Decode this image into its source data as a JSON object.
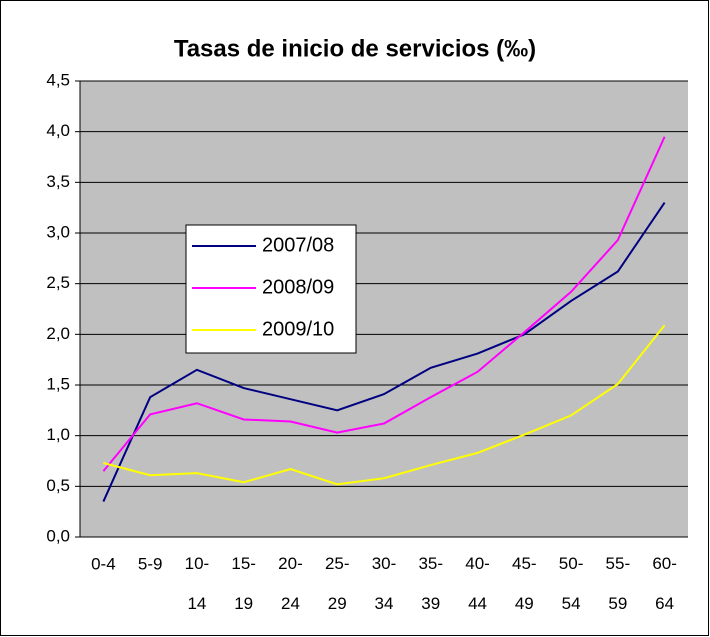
{
  "chart_data": {
    "type": "line",
    "title": "Tasas de inicio de servicios (‰)",
    "categories": [
      "0-4",
      "5-9",
      "10-14",
      "15-19",
      "20-24",
      "25-29",
      "30-34",
      "35-39",
      "40-44",
      "45-49",
      "50-54",
      "55-59",
      "60-64"
    ],
    "series": [
      {
        "name": "2007/08",
        "color": "#000080",
        "values": [
          0.35,
          1.38,
          1.65,
          1.47,
          1.36,
          1.25,
          1.41,
          1.67,
          1.81,
          2.0,
          2.33,
          2.62,
          3.3
        ]
      },
      {
        "name": "2008/09",
        "color": "#ff00ff",
        "values": [
          0.65,
          1.21,
          1.32,
          1.16,
          1.14,
          1.03,
          1.12,
          1.38,
          1.63,
          2.02,
          2.42,
          2.93,
          3.95
        ]
      },
      {
        "name": "2009/10",
        "color": "#ffff00",
        "values": [
          0.73,
          0.61,
          0.63,
          0.54,
          0.67,
          0.52,
          0.58,
          0.71,
          0.83,
          1.01,
          1.2,
          1.51,
          2.09
        ]
      }
    ],
    "ylim": [
      0,
      4.5
    ],
    "yticks": [
      {
        "value": 0,
        "label": "0,0"
      },
      {
        "value": 0.5,
        "label": "0,5"
      },
      {
        "value": 1,
        "label": "1,0"
      },
      {
        "value": 1.5,
        "label": "1,5"
      },
      {
        "value": 2,
        "label": "2,0"
      },
      {
        "value": 2.5,
        "label": "2,5"
      },
      {
        "value": 3,
        "label": "3,0"
      },
      {
        "value": 3.5,
        "label": "3,5"
      },
      {
        "value": 4,
        "label": "4,0"
      },
      {
        "value": 4.5,
        "label": "4,5"
      }
    ],
    "grid": true
  }
}
